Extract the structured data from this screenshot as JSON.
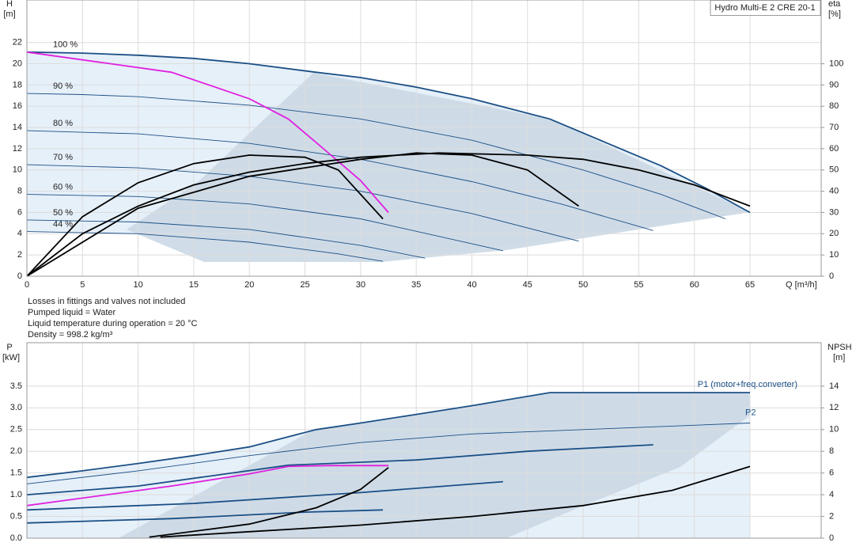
{
  "product": "Hydro Multi-E 2 CRE 20-1",
  "notes": [
    "Losses in fittings and valves not included",
    "Pumped liquid = Water",
    "Liquid temperature during operation = 20 °C",
    "Density = 998.2 kg/m³"
  ],
  "chart_data": [
    {
      "type": "line",
      "y_label": "H",
      "y_unit": "[m]",
      "y2_label": "eta",
      "y2_unit": "[%]",
      "x_label": "Q [m³/h]",
      "xlim": [
        0,
        71.4
      ],
      "xticks": [
        0,
        5,
        10,
        15,
        20,
        25,
        30,
        35,
        40,
        45,
        50,
        55,
        60,
        65
      ],
      "ylim": [
        0,
        26
      ],
      "yticks": [
        0,
        2,
        4,
        6,
        8,
        10,
        12,
        14,
        16,
        18,
        20,
        22
      ],
      "y2lim": [
        0,
        130
      ],
      "y2ticks": [
        0,
        10,
        20,
        30,
        40,
        50,
        60,
        70,
        80,
        90,
        100
      ],
      "grid": true,
      "series": [
        {
          "name": "100 %",
          "color": "#1b4f85",
          "line": "thick",
          "x": [
            0,
            5,
            10,
            15,
            20,
            26,
            30,
            35,
            40,
            47,
            52,
            57,
            61,
            65
          ],
          "values": [
            21.1,
            21.0,
            20.8,
            20.5,
            20.0,
            19.2,
            18.7,
            17.8,
            16.7,
            14.8,
            12.6,
            10.4,
            8.3,
            6.0
          ]
        },
        {
          "name": "90 %",
          "color": "#1b4f85",
          "line": "thin",
          "x": [
            0,
            5,
            10,
            20,
            30,
            40,
            50,
            57,
            62.8
          ],
          "values": [
            17.2,
            17.1,
            16.9,
            16.1,
            14.8,
            12.8,
            10.0,
            7.7,
            5.4
          ]
        },
        {
          "name": "80 %",
          "color": "#1b4f85",
          "line": "thin",
          "x": [
            0,
            10,
            20,
            30,
            40,
            48,
            56.3
          ],
          "values": [
            13.7,
            13.4,
            12.5,
            11.0,
            8.9,
            6.8,
            4.3
          ]
        },
        {
          "name": "70 %",
          "color": "#1b4f85",
          "line": "thin",
          "x": [
            0,
            10,
            20,
            30,
            40,
            49.6
          ],
          "values": [
            10.5,
            10.2,
            9.4,
            8.0,
            5.9,
            3.3
          ]
        },
        {
          "name": "60 %",
          "color": "#1b4f85",
          "line": "thin",
          "x": [
            0,
            10,
            20,
            30,
            42.8
          ],
          "values": [
            7.7,
            7.5,
            6.8,
            5.4,
            2.4
          ]
        },
        {
          "name": "50 %",
          "color": "#1b4f85",
          "line": "thin",
          "x": [
            0,
            10,
            20,
            30,
            35.8
          ],
          "values": [
            5.3,
            5.1,
            4.4,
            2.9,
            1.7
          ]
        },
        {
          "name": "44 %",
          "color": "#1b4f85",
          "line": "thin",
          "x": [
            0,
            10,
            20,
            28,
            32
          ],
          "values": [
            4.2,
            4.0,
            3.2,
            2.1,
            1.4
          ]
        },
        {
          "color": "#e020e0",
          "line": "thick",
          "x": [
            0,
            13,
            20,
            23.5,
            27,
            30,
            32.5
          ],
          "values": [
            21.1,
            19.2,
            16.7,
            14.8,
            11.7,
            9.0,
            6.0
          ]
        },
        {
          "color": "#000000",
          "line": "thick",
          "axis": "y2",
          "x": [
            0,
            5,
            10,
            15,
            20,
            25,
            30,
            37,
            45,
            50,
            55,
            60,
            65
          ],
          "values": [
            0,
            20,
            33,
            43,
            49,
            53,
            56,
            58,
            57,
            55,
            50,
            43,
            33
          ]
        },
        {
          "color": "#000000",
          "line": "thick",
          "axis": "y2",
          "x": [
            0,
            10,
            20,
            30,
            35,
            40,
            45,
            49.6
          ],
          "values": [
            0,
            32,
            47,
            55,
            58,
            57,
            50,
            33
          ]
        },
        {
          "color": "#000000",
          "line": "thick",
          "axis": "y2",
          "x": [
            0,
            5,
            10,
            15,
            20,
            25,
            28,
            32
          ],
          "values": [
            0,
            28,
            44,
            53,
            57,
            56,
            50,
            27
          ]
        }
      ]
    },
    {
      "type": "line",
      "y_label": "P",
      "y_unit": "[kW]",
      "y2_label": "NPSH",
      "y2_unit": "[m]",
      "xlim": [
        0,
        71.4
      ],
      "ylim": [
        0,
        4.5
      ],
      "yticks": [
        {
          "value": 0,
          "label": "0.0"
        },
        0.5,
        {
          "value": 1,
          "label": "1.0"
        },
        1.5,
        {
          "value": 2,
          "label": "2.0"
        },
        2.5,
        {
          "value": 3,
          "label": "3.0"
        },
        3.5
      ],
      "y2lim": [
        0,
        18
      ],
      "y2ticks": [
        0,
        2,
        4,
        6,
        8,
        10,
        12,
        14
      ],
      "grid": true,
      "series": [
        {
          "name": "P1 (motor+freq.converter)",
          "color": "#1b4f85",
          "line": "thick",
          "x": [
            0,
            5,
            10,
            15,
            20,
            26,
            30,
            35,
            40,
            47,
            55,
            65
          ],
          "values": [
            1.4,
            1.55,
            1.72,
            1.9,
            2.1,
            2.5,
            2.65,
            2.85,
            3.05,
            3.35,
            3.35,
            3.35
          ]
        },
        {
          "name": "P2",
          "color": "#1b4f85",
          "line": "thin",
          "x": [
            0,
            10,
            20,
            30,
            40,
            50,
            60,
            65
          ],
          "values": [
            1.25,
            1.55,
            1.9,
            2.2,
            2.4,
            2.5,
            2.6,
            2.65
          ]
        },
        {
          "color": "#1b4f85",
          "line": "thick",
          "x": [
            0,
            10,
            23.5,
            35,
            45,
            56.3
          ],
          "values": [
            1.0,
            1.2,
            1.68,
            1.8,
            2.0,
            2.15
          ]
        },
        {
          "color": "#1b4f85",
          "line": "thick",
          "x": [
            0,
            15,
            30,
            42.8
          ],
          "values": [
            0.65,
            0.8,
            1.05,
            1.3
          ]
        },
        {
          "color": "#1b4f85",
          "line": "thick",
          "x": [
            0,
            13,
            25,
            32
          ],
          "values": [
            0.35,
            0.45,
            0.6,
            0.65
          ]
        },
        {
          "color": "#e020e0",
          "line": "thick",
          "x": [
            0,
            13,
            20,
            23.5,
            27,
            32.5
          ],
          "values": [
            0.75,
            1.2,
            1.48,
            1.65,
            1.67,
            1.67
          ]
        },
        {
          "color": "#000000",
          "line": "thick",
          "axis": "y2",
          "x": [
            12,
            20,
            30,
            40,
            50,
            58,
            65
          ],
          "values": [
            0.1,
            0.6,
            1.2,
            2.0,
            3.0,
            4.4,
            6.6
          ]
        },
        {
          "color": "#000000",
          "line": "thick",
          "axis": "y2",
          "x": [
            11,
            20,
            26,
            30,
            32.5
          ],
          "values": [
            0.1,
            1.3,
            2.8,
            4.5,
            6.5
          ]
        }
      ]
    }
  ]
}
